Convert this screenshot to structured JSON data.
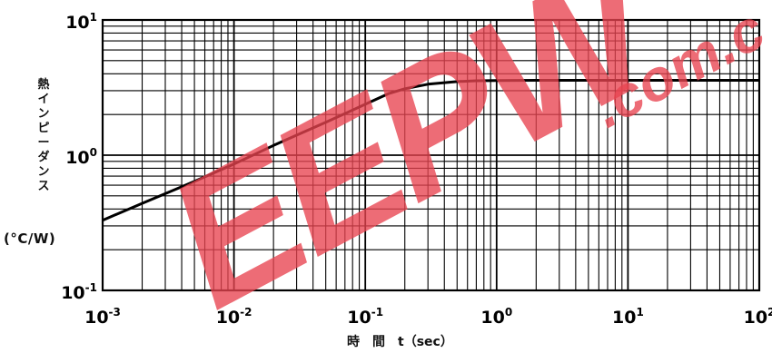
{
  "chart_data": {
    "type": "line",
    "title": "",
    "xlabel": "時　間　t（sec）",
    "ylabel": "熱インピーダンス",
    "yunit": "(°C/W)",
    "xscale": "log",
    "yscale": "log",
    "xlim": [
      0.001,
      100
    ],
    "ylim": [
      0.1,
      10
    ],
    "grid": true,
    "x_ticks": [
      {
        "base": "10",
        "exp": "-3",
        "value": 0.001
      },
      {
        "base": "10",
        "exp": "-2",
        "value": 0.01
      },
      {
        "base": "10",
        "exp": "-1",
        "value": 0.1
      },
      {
        "base": "10",
        "exp": "0",
        "value": 1
      },
      {
        "base": "10",
        "exp": "1",
        "value": 10
      },
      {
        "base": "10",
        "exp": "2",
        "value": 100
      }
    ],
    "y_ticks": [
      {
        "base": "10",
        "exp": "-1",
        "value": 0.1
      },
      {
        "base": "10",
        "exp": "0",
        "value": 1
      },
      {
        "base": "10",
        "exp": "1",
        "value": 10
      }
    ],
    "series": [
      {
        "x": [
          0.001,
          0.002,
          0.005,
          0.01,
          0.02,
          0.05,
          0.1,
          0.15,
          0.2,
          0.3,
          0.5,
          0.7,
          1,
          2,
          5,
          10,
          100
        ],
        "y": [
          0.33,
          0.44,
          0.64,
          0.86,
          1.18,
          1.75,
          2.38,
          2.85,
          3.1,
          3.35,
          3.5,
          3.55,
          3.57,
          3.58,
          3.58,
          3.58,
          3.58
        ]
      }
    ]
  },
  "watermark": {
    "main": "EEPW",
    "domain": ".com.c"
  }
}
